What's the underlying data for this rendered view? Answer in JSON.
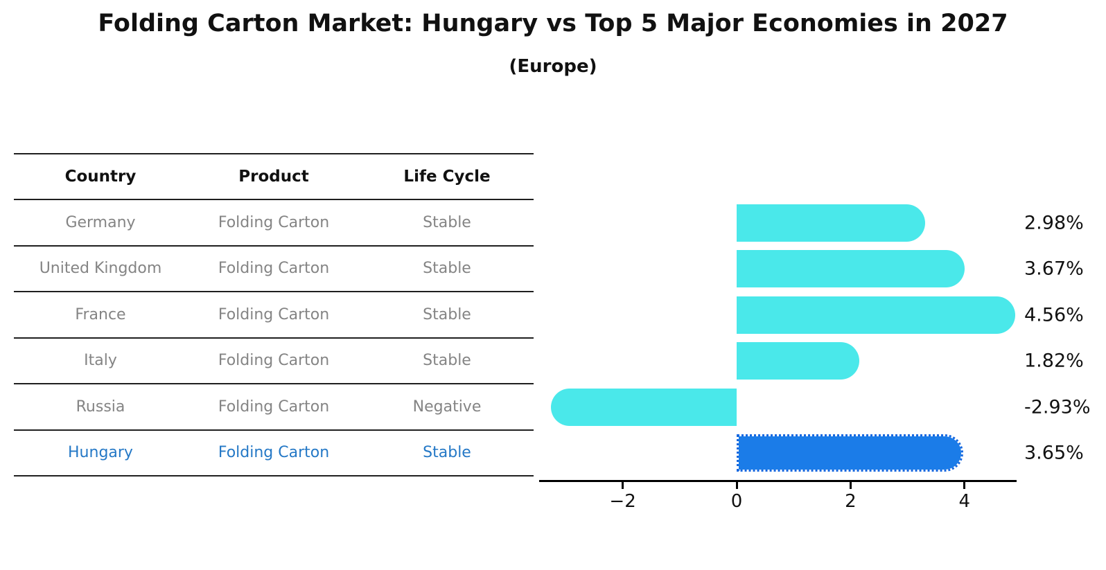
{
  "header": {
    "title": "Folding Carton Market: Hungary vs Top 5 Major Economies in 2027",
    "subtitle": "(Europe)"
  },
  "table": {
    "columns": [
      "Country",
      "Product",
      "Life Cycle"
    ],
    "rows": [
      {
        "country": "Germany",
        "product": "Folding Carton",
        "life_cycle": "Stable",
        "highlight": false
      },
      {
        "country": "United Kingdom",
        "product": "Folding Carton",
        "life_cycle": "Stable",
        "highlight": false
      },
      {
        "country": "France",
        "product": "Folding Carton",
        "life_cycle": "Stable",
        "highlight": false
      },
      {
        "country": "Italy",
        "product": "Folding Carton",
        "life_cycle": "Stable",
        "highlight": false
      },
      {
        "country": "Russia",
        "product": "Folding Carton",
        "life_cycle": "Negative",
        "highlight": false
      },
      {
        "country": "Hungary",
        "product": "Folding Carton",
        "life_cycle": "Stable",
        "highlight": true
      }
    ]
  },
  "chart_data": {
    "type": "bar",
    "orientation": "horizontal",
    "title": "Folding Carton Market: Hungary vs Top 5 Major Economies in 2027",
    "subtitle": "(Europe)",
    "categories": [
      "Germany",
      "United Kingdom",
      "France",
      "Italy",
      "Russia",
      "Hungary"
    ],
    "values": [
      2.98,
      3.67,
      4.56,
      1.82,
      -2.93,
      3.65
    ],
    "value_labels": [
      "2.98%",
      "3.67%",
      "4.56%",
      "1.82%",
      "-2.93%",
      "3.65%"
    ],
    "unit": "percent",
    "highlight_category": "Hungary",
    "xlim": [
      -3.3,
      4.95
    ],
    "xticks": [
      -2,
      0,
      2,
      4
    ],
    "xtick_labels": [
      "−2",
      "0",
      "2",
      "4"
    ],
    "grid": false,
    "legend": null,
    "colors": {
      "bar": "#4AE8EA",
      "highlight_bar": "#1B7CE8",
      "highlight_bar_edge": "#1668E0",
      "highlight_text": "#2478C6",
      "row_text": "#848484",
      "header_text": "#111111",
      "axis": "#000000",
      "background": "#ffffff"
    }
  }
}
